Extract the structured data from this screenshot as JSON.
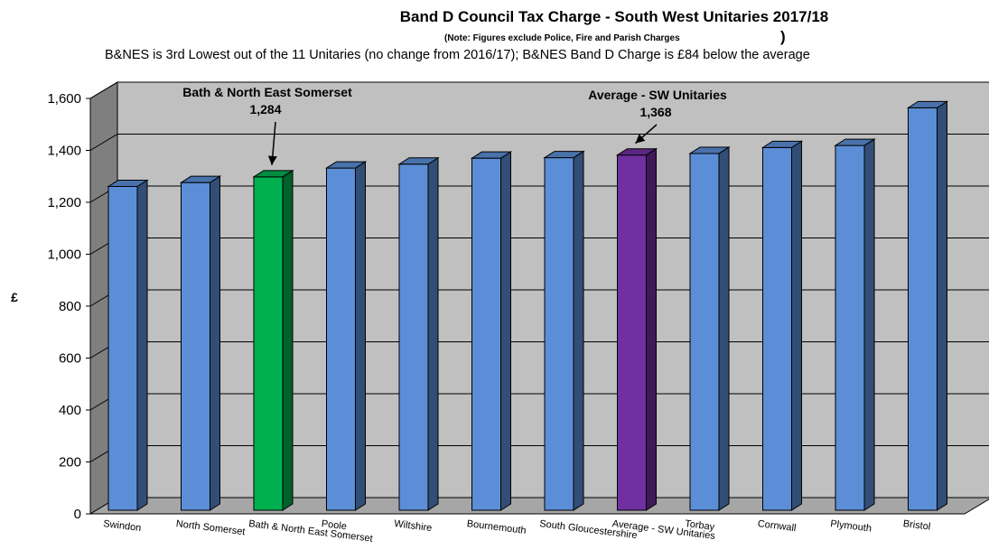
{
  "chart_data": {
    "type": "bar",
    "title": "Band D Council Tax Charge - South West Unitaries 2017/18",
    "note": "(Note: Figures exclude Police, Fire and Parish Charges",
    "note_close": ")",
    "subtitle": "B&NES is 3rd Lowest out of the 11 Unitaries (no change from 2016/17); B&NES Band D Charge is  £84  below  the average",
    "ylabel": "£",
    "ylim": [
      0,
      1600
    ],
    "yticks": [
      0,
      200,
      400,
      600,
      800,
      1000,
      1200,
      1400,
      1600
    ],
    "ytick_labels": [
      "0",
      "200",
      "400",
      "600",
      "800",
      "1,000",
      "1,200",
      "1,400",
      "1,600"
    ],
    "grid": true,
    "categories": [
      "Swindon",
      "North Somerset",
      "Bath & North East Somerset",
      "Poole",
      "Wiltshire",
      "Bournemouth",
      "South Gloucestershire",
      "Average - SW Unitaries",
      "Torbay",
      "Cornwall",
      "Plymouth",
      "Bristol"
    ],
    "values": [
      1247,
      1262,
      1284,
      1318,
      1333,
      1356,
      1358,
      1368,
      1374,
      1397,
      1405,
      1550
    ],
    "colors": [
      "#5B8ED6",
      "#5B8ED6",
      "#00B04F",
      "#5B8ED6",
      "#5B8ED6",
      "#5B8ED6",
      "#5B8ED6",
      "#7030A0",
      "#5B8ED6",
      "#5B8ED6",
      "#5B8ED6",
      "#5B8ED6"
    ],
    "annotations": [
      {
        "category_index": 2,
        "label": "Bath & North East Somerset",
        "value_label": "1,284"
      },
      {
        "category_index": 7,
        "label": "Average - SW Unitaries",
        "value_label": "1,368"
      }
    ]
  }
}
